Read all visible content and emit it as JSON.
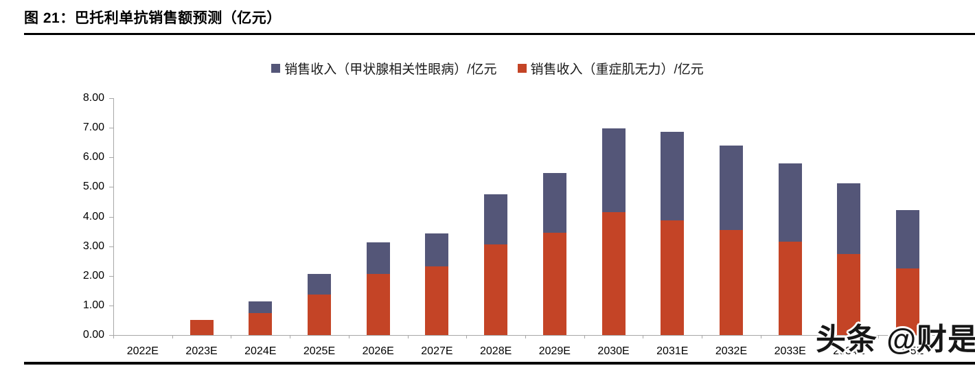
{
  "figure": {
    "title": "图 21：巴托利单抗销售额预测（亿元）"
  },
  "watermark": "头条 @财是",
  "colors": {
    "ted_series": "#545678",
    "mg_series": "#C44426",
    "axis": "#a6a6a6",
    "rule": "#000000"
  },
  "chart_data": {
    "type": "bar",
    "stacked": true,
    "title": "图 21：巴托利单抗销售额预测（亿元）",
    "categories": [
      "2022E",
      "2023E",
      "2024E",
      "2025E",
      "2026E",
      "2027E",
      "2028E",
      "2029E",
      "2030E",
      "2031E",
      "2032E",
      "2033E",
      "2034E",
      "2035E"
    ],
    "series": [
      {
        "name": "销售收入（甲状腺相关性眼病）/亿元",
        "color": "#545678",
        "stack_order": "top",
        "values": [
          0,
          0,
          0.38,
          0.7,
          1.06,
          1.12,
          1.68,
          2.03,
          2.82,
          2.99,
          2.84,
          2.64,
          2.38,
          1.98
        ]
      },
      {
        "name": "销售收入（重症肌无力）/亿元",
        "color": "#C44426",
        "stack_order": "bottom",
        "values": [
          0,
          0.5,
          0.75,
          1.37,
          2.06,
          2.32,
          3.07,
          3.45,
          4.15,
          3.87,
          3.55,
          3.16,
          2.74,
          2.25
        ]
      }
    ],
    "totals": [
      0,
      0.5,
      1.13,
      2.07,
      3.12,
      3.44,
      4.75,
      5.48,
      6.97,
      6.86,
      6.39,
      5.8,
      5.12,
      4.23
    ],
    "xlabel": "",
    "ylabel": "",
    "ylim": [
      0,
      8
    ],
    "ytick_step": 1,
    "ytick_labels": [
      "0.00",
      "1.00",
      "2.00",
      "3.00",
      "4.00",
      "5.00",
      "6.00",
      "7.00",
      "8.00"
    ],
    "grid": false,
    "legend_position": "top-center"
  }
}
